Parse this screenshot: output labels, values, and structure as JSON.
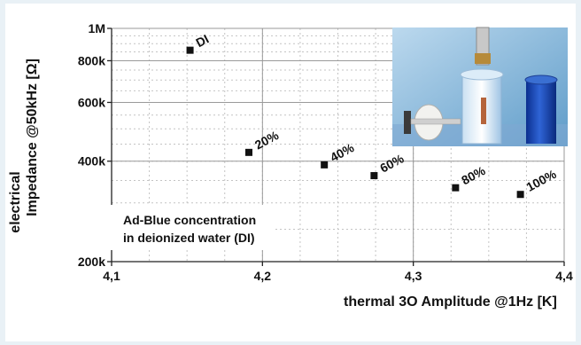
{
  "chart_data": {
    "type": "scatter",
    "xlabel": "thermal 3O Amplitude @1Hz [K]",
    "ylabel_line1": "electrical",
    "ylabel_line2": "Impedance @50kHz [Ω]",
    "xlim": [
      4.1,
      4.4
    ],
    "ylim": [
      200000,
      1000000
    ],
    "yscale": "log",
    "grid": true,
    "x_ticks": [
      {
        "value": 4.1,
        "label": "4,1"
      },
      {
        "value": 4.2,
        "label": "4,2"
      },
      {
        "value": 4.3,
        "label": "4,3"
      },
      {
        "value": 4.4,
        "label": "4,4"
      }
    ],
    "y_ticks": [
      {
        "value": 200000,
        "label": "200k"
      },
      {
        "value": 400000,
        "label": "400k"
      },
      {
        "value": 600000,
        "label": "600k"
      },
      {
        "value": 800000,
        "label": "800k"
      },
      {
        "value": 1000000,
        "label": "1M"
      }
    ],
    "points": [
      {
        "label": "DI",
        "x": 4.152,
        "y": 860000
      },
      {
        "label": "20%",
        "x": 4.191,
        "y": 425000
      },
      {
        "label": "40%",
        "x": 4.241,
        "y": 390000
      },
      {
        "label": "60%",
        "x": 4.274,
        "y": 362000
      },
      {
        "label": "80%",
        "x": 4.328,
        "y": 333000
      },
      {
        "label": "100%",
        "x": 4.371,
        "y": 318000
      }
    ],
    "annotation": {
      "line1": "Ad-Blue concentration",
      "line2": "in deionized water (DI)"
    },
    "marker_color": "#111111"
  }
}
